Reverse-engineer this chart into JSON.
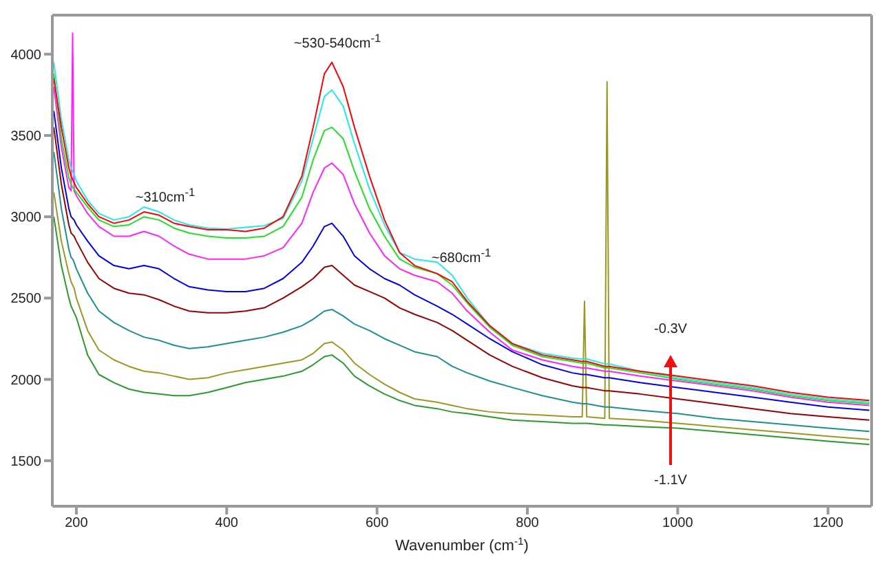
{
  "chart_data": {
    "type": "line",
    "xlabel": "Wavenumber (cm$^{-1}$)",
    "x": [
      170,
      180,
      190,
      193,
      195,
      197,
      200,
      215,
      230,
      250,
      270,
      290,
      310,
      330,
      350,
      375,
      400,
      425,
      450,
      475,
      500,
      515,
      530,
      540,
      555,
      570,
      590,
      610,
      630,
      650,
      680,
      700,
      720,
      750,
      780,
      820,
      860,
      873,
      876,
      879,
      903,
      906,
      909,
      950,
      1000,
      1050,
      1100,
      1150,
      1200,
      1255
    ],
    "xlim": [
      168,
      1258
    ],
    "xticks": [
      200,
      400,
      600,
      800,
      1000,
      1200
    ],
    "ylim": [
      1220,
      4240
    ],
    "yticks": [
      1500,
      2000,
      2500,
      3000,
      3500,
      4000
    ],
    "series": [
      {
        "color": "#ff0000",
        "values": [
          3850,
          3550,
          3300,
          3250,
          3230,
          3210,
          3180,
          3080,
          3000,
          2960,
          2980,
          3030,
          3010,
          2960,
          2940,
          2920,
          2920,
          2910,
          2930,
          3000,
          3250,
          3550,
          3880,
          3950,
          3800,
          3550,
          3250,
          2980,
          2780,
          2700,
          2650,
          2600,
          2480,
          2330,
          2220,
          2150,
          2120,
          2110,
          2110,
          2110,
          2080,
          2080,
          2080,
          2050,
          2020,
          1990,
          1960,
          1920,
          1890,
          1870
        ]
      },
      {
        "color": "#22e8e8",
        "values": [
          3950,
          3600,
          3350,
          3300,
          3280,
          3260,
          3220,
          3100,
          3020,
          2980,
          3000,
          3060,
          3030,
          2980,
          2950,
          2930,
          2925,
          2935,
          2945,
          2990,
          3220,
          3480,
          3740,
          3780,
          3680,
          3450,
          3170,
          2950,
          2780,
          2740,
          2720,
          2640,
          2500,
          2330,
          2220,
          2160,
          2130,
          2125,
          2125,
          2125,
          2095,
          2095,
          2095,
          2050,
          2010,
          1980,
          1950,
          1910,
          1880,
          1860
        ]
      },
      {
        "color": "#22e022",
        "values": [
          3880,
          3480,
          3240,
          3200,
          3180,
          3170,
          3150,
          3060,
          2980,
          2940,
          2950,
          3000,
          2980,
          2930,
          2900,
          2880,
          2870,
          2870,
          2880,
          2940,
          3120,
          3350,
          3530,
          3550,
          3480,
          3280,
          3050,
          2880,
          2740,
          2690,
          2650,
          2580,
          2470,
          2320,
          2210,
          2140,
          2110,
          2100,
          2100,
          2100,
          2070,
          2070,
          2070,
          2040,
          2000,
          1970,
          1940,
          1900,
          1870,
          1850
        ]
      },
      {
        "color": "#ff22ff",
        "values": [
          3800,
          3430,
          3180,
          3160,
          4130,
          3160,
          3130,
          3020,
          2940,
          2880,
          2880,
          2910,
          2880,
          2820,
          2770,
          2740,
          2740,
          2740,
          2760,
          2810,
          2960,
          3150,
          3300,
          3330,
          3260,
          3080,
          2900,
          2760,
          2680,
          2640,
          2600,
          2530,
          2420,
          2290,
          2180,
          2120,
          2080,
          2070,
          2070,
          2070,
          2050,
          2050,
          2050,
          2020,
          1990,
          1960,
          1930,
          1890,
          1860,
          1840
        ]
      },
      {
        "color": "#0000ee",
        "values": [
          3650,
          3300,
          3050,
          3000,
          2990,
          2980,
          2950,
          2850,
          2760,
          2700,
          2680,
          2700,
          2680,
          2620,
          2570,
          2550,
          2540,
          2540,
          2560,
          2620,
          2720,
          2820,
          2940,
          2960,
          2880,
          2760,
          2680,
          2620,
          2580,
          2520,
          2450,
          2400,
          2340,
          2250,
          2170,
          2090,
          2040,
          2030,
          2030,
          2030,
          2010,
          2010,
          2010,
          1980,
          1950,
          1920,
          1890,
          1860,
          1830,
          1810
        ]
      },
      {
        "color": "#990000",
        "values": [
          3550,
          3200,
          2950,
          2900,
          2890,
          2880,
          2850,
          2720,
          2620,
          2560,
          2530,
          2520,
          2490,
          2450,
          2420,
          2410,
          2410,
          2420,
          2440,
          2500,
          2570,
          2620,
          2690,
          2700,
          2640,
          2580,
          2540,
          2500,
          2440,
          2400,
          2350,
          2300,
          2240,
          2150,
          2080,
          2010,
          1960,
          1950,
          1950,
          1950,
          1930,
          1930,
          1930,
          1910,
          1880,
          1850,
          1820,
          1790,
          1770,
          1750
        ]
      },
      {
        "color": "#1a9090",
        "values": [
          3400,
          3050,
          2800,
          2750,
          2740,
          2720,
          2680,
          2530,
          2420,
          2350,
          2300,
          2260,
          2240,
          2210,
          2190,
          2200,
          2220,
          2240,
          2260,
          2290,
          2330,
          2370,
          2420,
          2430,
          2390,
          2340,
          2300,
          2250,
          2210,
          2170,
          2140,
          2080,
          2040,
          1990,
          1950,
          1900,
          1860,
          1850,
          1850,
          1850,
          1830,
          1830,
          1830,
          1810,
          1790,
          1760,
          1740,
          1720,
          1700,
          1680
        ]
      },
      {
        "color": "#999922",
        "values": [
          3150,
          2850,
          2650,
          2600,
          2580,
          2560,
          2500,
          2300,
          2180,
          2120,
          2080,
          2050,
          2040,
          2020,
          2000,
          2010,
          2040,
          2060,
          2080,
          2100,
          2120,
          2160,
          2220,
          2230,
          2180,
          2100,
          2030,
          1970,
          1920,
          1880,
          1860,
          1840,
          1820,
          1800,
          1790,
          1780,
          1770,
          1770,
          2480,
          1770,
          1760,
          3830,
          1760,
          1750,
          1730,
          1710,
          1690,
          1670,
          1650,
          1630
        ]
      },
      {
        "color": "#2a9a2a",
        "values": [
          3000,
          2700,
          2500,
          2450,
          2430,
          2410,
          2380,
          2150,
          2030,
          1980,
          1940,
          1920,
          1910,
          1900,
          1900,
          1920,
          1950,
          1980,
          2000,
          2020,
          2050,
          2090,
          2140,
          2150,
          2100,
          2020,
          1960,
          1910,
          1870,
          1840,
          1820,
          1800,
          1790,
          1770,
          1750,
          1740,
          1730,
          1730,
          1730,
          1730,
          1720,
          1720,
          1720,
          1710,
          1700,
          1680,
          1660,
          1640,
          1620,
          1600
        ]
      }
    ],
    "annotations": [
      "~530-540cm$^{-1}$",
      "~310cm$^{-1}$",
      "~680cm$^{-1}$",
      "-0.3V",
      "-1.1V"
    ]
  }
}
